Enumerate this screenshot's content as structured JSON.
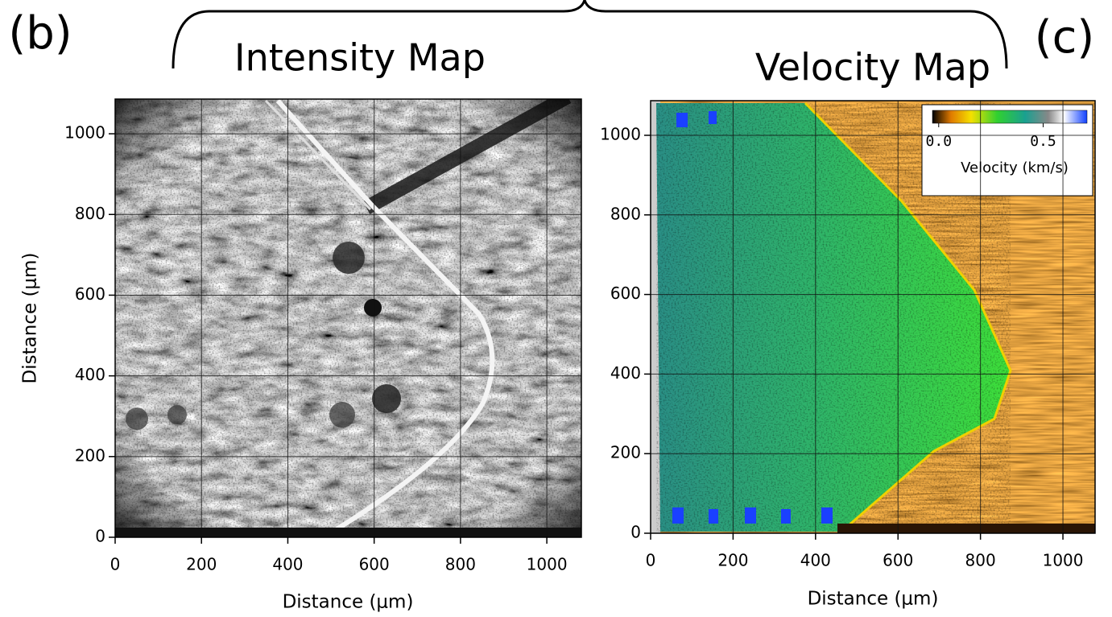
{
  "chart_data": [
    {
      "type": "image",
      "panel_label": "(b)",
      "title": "Intensity Map",
      "xlabel": "Distance (μm)",
      "ylabel": "Distance (μm)",
      "xlim": [
        0,
        1080
      ],
      "ylim": [
        0,
        1086
      ],
      "xticks": [
        0,
        200,
        400,
        600,
        800,
        1000
      ],
      "yticks": [
        0,
        200,
        400,
        600,
        800,
        1000
      ],
      "grid": true,
      "colormap": "gray"
    },
    {
      "type": "image",
      "panel_label": "(c)",
      "title": "Velocity Map",
      "xlabel": "Distance (μm)",
      "ylabel": "Distance (μm)",
      "xlim": [
        0,
        1078
      ],
      "ylim": [
        0,
        1087
      ],
      "xticks": [
        0,
        200,
        400,
        600,
        800,
        1000
      ],
      "yticks": [
        0,
        200,
        400,
        600,
        800,
        1000
      ],
      "grid": true,
      "colormap": "velocity",
      "colorbar": {
        "label": "Velocity (km/s)",
        "clim": [
          -0.03,
          0.71
        ],
        "ticks": [
          {
            "value": 0,
            "label": "0.0"
          },
          0.5
        ]
      }
    }
  ]
}
